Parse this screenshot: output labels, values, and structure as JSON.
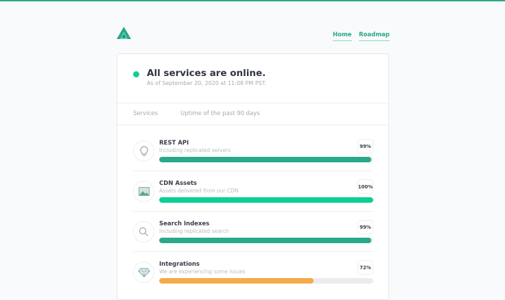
{
  "nav": {
    "home": "Home",
    "roadmap": "Roadmap"
  },
  "status": {
    "title": "All services are online.",
    "subtitle": "As of September 20, 2020 at 11:08 PM PST.",
    "color": "#0ccf94"
  },
  "columns": {
    "services": "Services",
    "uptime": "Uptime of the past 90 days"
  },
  "services": [
    {
      "name": "REST API",
      "desc": "Including replicated servers",
      "uptime": "99%",
      "value": 99,
      "color": "#2aa889",
      "icon": "lightbulb-icon"
    },
    {
      "name": "CDN Assets",
      "desc": "Assets delivered from our CDN",
      "uptime": "100%",
      "value": 100,
      "color": "#0ccf94",
      "icon": "image-icon"
    },
    {
      "name": "Search Indexes",
      "desc": "Including replicated search",
      "uptime": "99%",
      "value": 99,
      "color": "#2aa889",
      "icon": "search-icon"
    },
    {
      "name": "Integrations",
      "desc": "We are experiencing some issues",
      "uptime": "72%",
      "value": 72,
      "color": "#f5ab48",
      "icon": "diamond-icon"
    }
  ]
}
